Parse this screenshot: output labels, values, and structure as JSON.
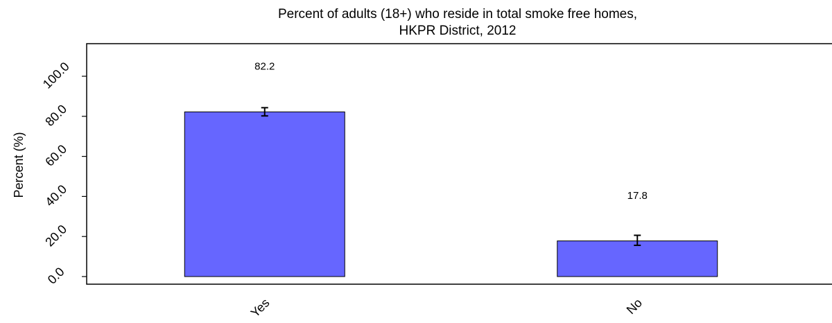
{
  "chart_data": {
    "type": "bar",
    "title": "Percent of adults (18+) who reside in total smoke free homes,",
    "subtitle": "HKPR District, 2012",
    "ylabel": "Percent (%)",
    "xlabel": "",
    "categories": [
      "Yes",
      "No"
    ],
    "values": [
      82.2,
      17.8
    ],
    "data_labels": [
      "82.2",
      "17.8"
    ],
    "error_bars": [
      {
        "low": 80.2,
        "high": 84.3
      },
      {
        "low": 15.6,
        "high": 20.6
      }
    ],
    "ylim": [
      0,
      115
    ],
    "yticks": [
      0,
      20,
      40,
      60,
      80,
      100
    ],
    "ytick_labels": [
      "0.0",
      "20.0",
      "40.0",
      "60.0",
      "80.0",
      "100.0"
    ],
    "grid": false,
    "bar_color": "#6666ff",
    "bar_edge_color": "#000000"
  }
}
